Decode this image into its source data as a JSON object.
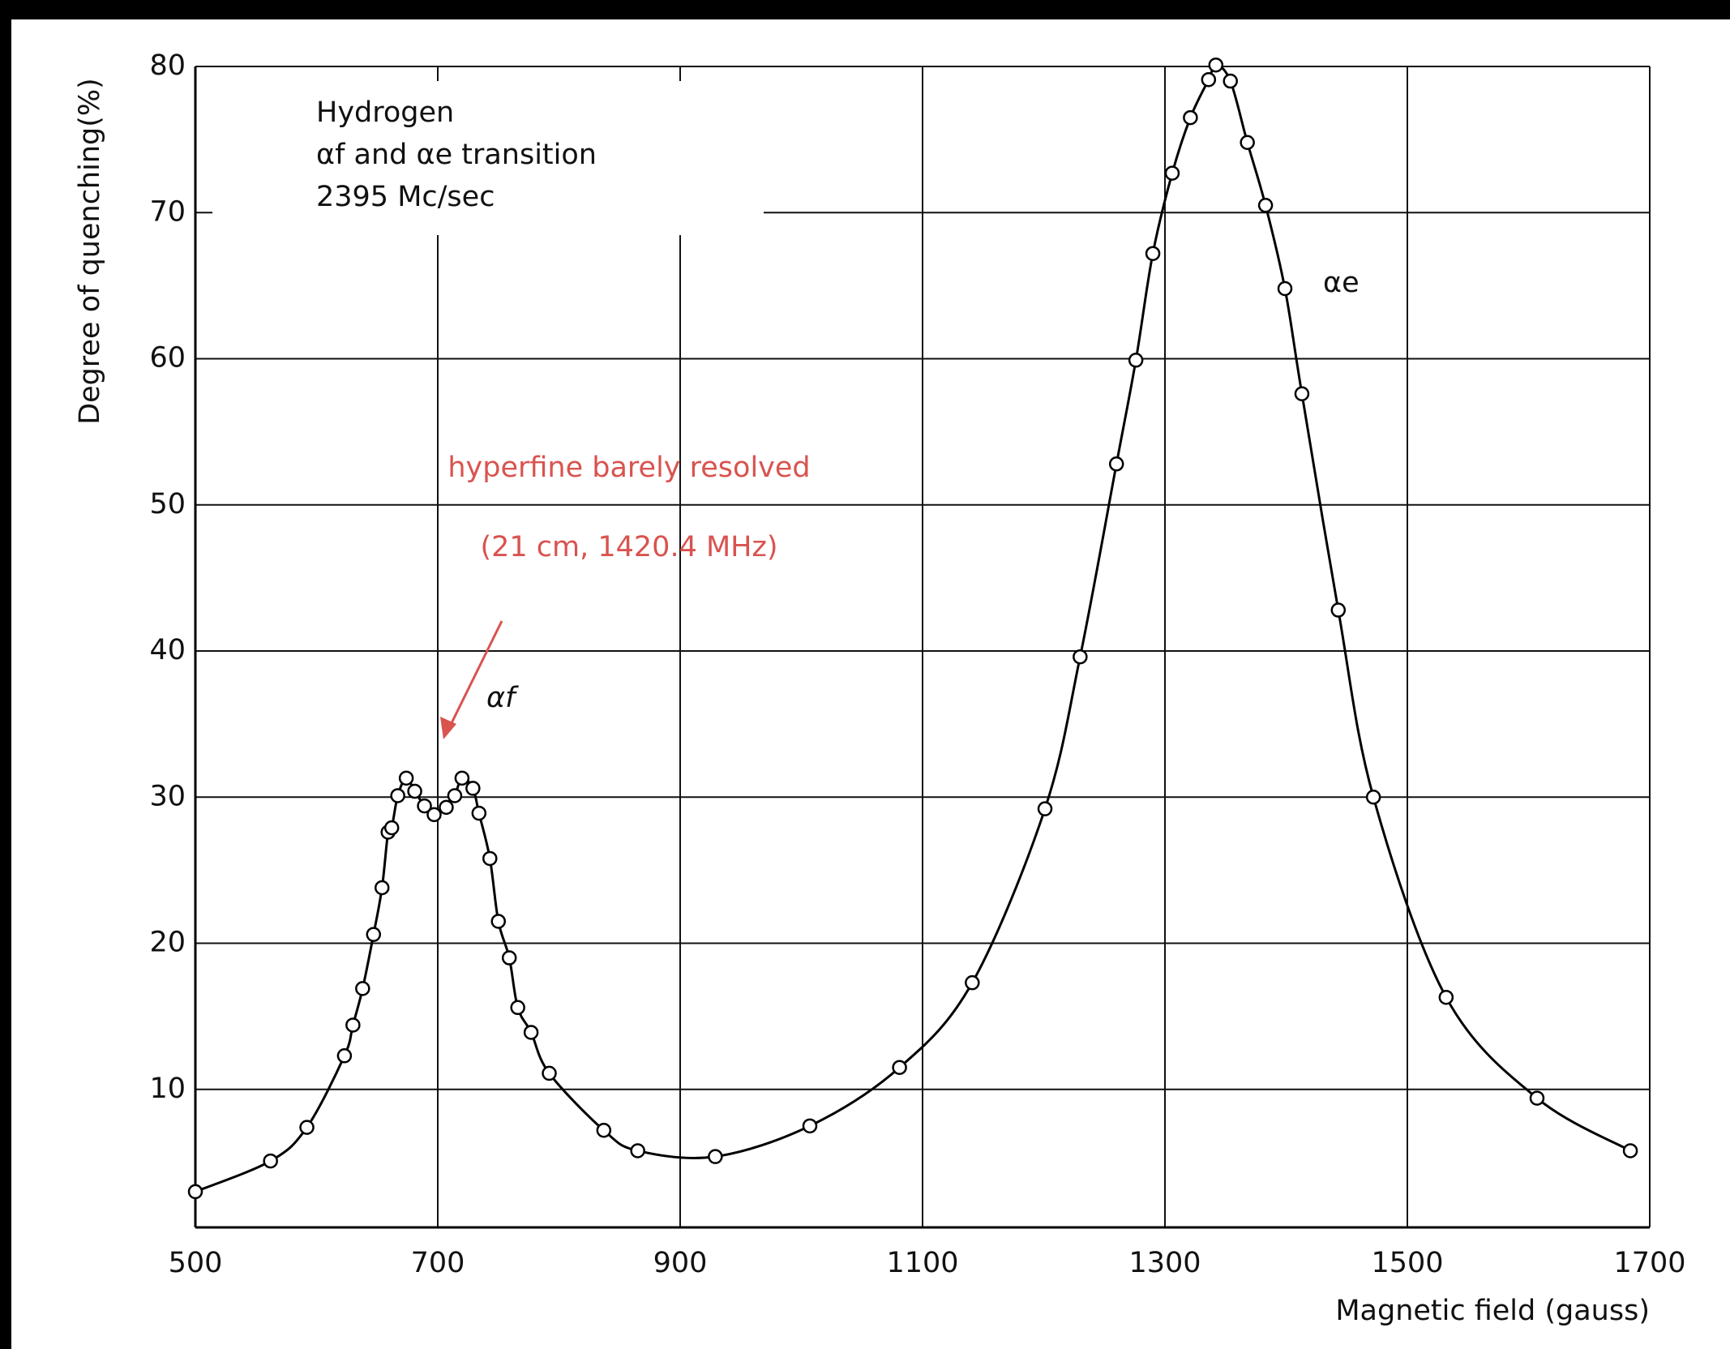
{
  "chart_data": {
    "type": "scatter",
    "x_label": "Magnetic field (gauss)",
    "y_label": "Degree of quenching(%)",
    "legend_text": [
      "Hydrogen",
      "αf and αe transition",
      "2395 Mc/sec"
    ],
    "peak_labels": [
      "αf",
      "αe"
    ],
    "annotations": [
      "hyperfine barely resolved",
      "(21 cm, 1420.4 MHz)"
    ],
    "x": [
      500,
      562,
      592,
      623,
      630,
      638,
      647,
      654,
      659,
      662,
      667,
      674,
      681,
      689,
      697,
      707,
      714,
      720,
      729,
      734,
      743,
      750,
      759,
      766,
      777,
      792,
      837,
      865,
      929,
      1007,
      1081,
      1141,
      1201,
      1230,
      1260,
      1276,
      1290,
      1306,
      1321,
      1336,
      1342,
      1354,
      1368,
      1383,
      1399,
      1413,
      1443,
      1472,
      1532,
      1607,
      1684
    ],
    "values": [
      3.0,
      5.1,
      7.4,
      12.3,
      14.4,
      16.9,
      20.6,
      23.8,
      27.6,
      27.9,
      30.1,
      31.3,
      30.4,
      29.4,
      28.8,
      29.3,
      30.1,
      31.3,
      30.6,
      28.9,
      25.8,
      21.5,
      19.0,
      15.6,
      13.9,
      11.1,
      7.2,
      5.8,
      5.4,
      7.5,
      11.5,
      17.3,
      29.2,
      39.6,
      52.8,
      59.9,
      67.2,
      72.7,
      76.5,
      79.1,
      80.1,
      79.0,
      74.8,
      70.5,
      64.8,
      57.6,
      42.8,
      30.0,
      16.3,
      9.4,
      5.8
    ],
    "color": "#000000",
    "annotation_color": "#d9534f",
    "xlim": [
      500,
      1700
    ],
    "ylim": [
      0,
      80
    ],
    "xticks": [
      500,
      700,
      900,
      1100,
      1300,
      1500,
      1700
    ],
    "yticks": [
      10,
      20,
      30,
      40,
      50,
      60,
      70,
      80
    ],
    "grid": true
  }
}
